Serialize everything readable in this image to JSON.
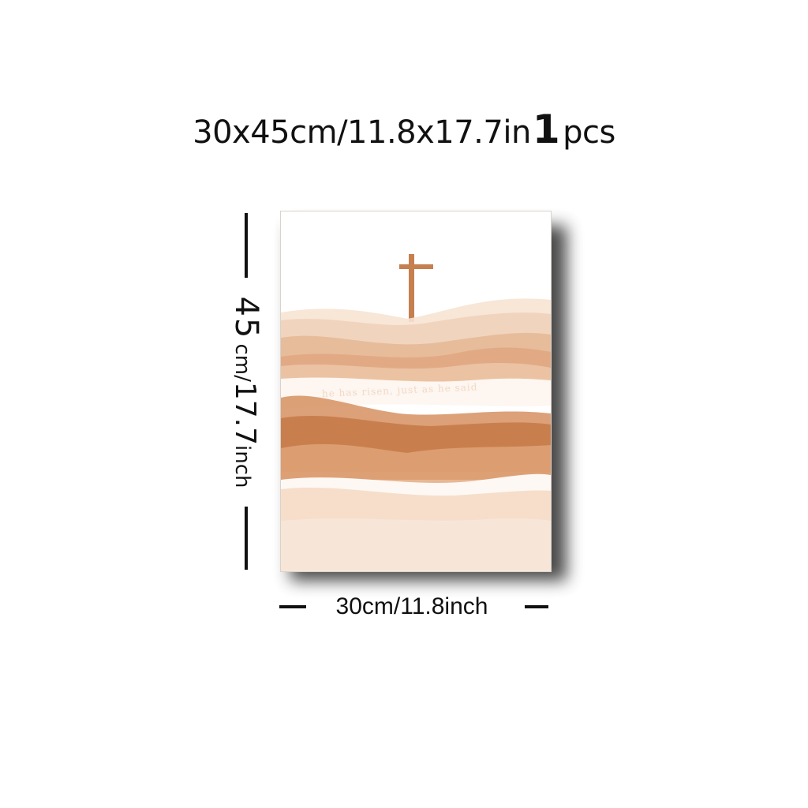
{
  "headline": {
    "size_text": "30x45cm/11.8x17.7in",
    "quantity": "1",
    "unit": "pcs"
  },
  "poster": {
    "verse": "he has risen, just as he said",
    "colors": {
      "sky": "#ffffff",
      "cross": "#c67f4f",
      "terracotta": "#c8804a",
      "sand": "#e9c3a3",
      "cream": "#f7e6d8"
    }
  },
  "height_label": {
    "value": "45",
    "unit1": "cm/",
    "value2": "17.7",
    "unit2": "inch"
  },
  "width_label": "30cm/11.8inch"
}
